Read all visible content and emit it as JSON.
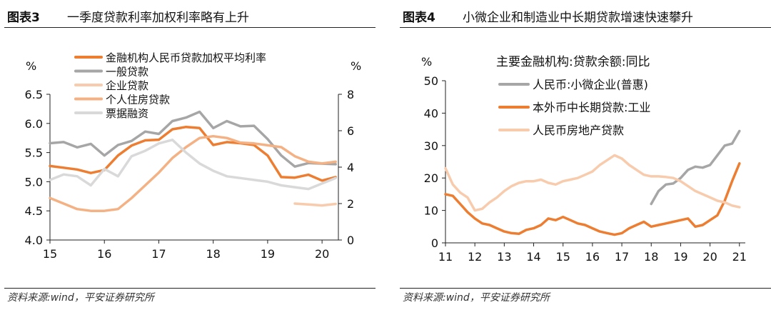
{
  "panels": [
    {
      "figure_label": "图表3",
      "figure_title": "一季度贷款利率加权利率略有上升",
      "source": "资料来源:wind，平安证券研究所"
    },
    {
      "figure_label": "图表4",
      "figure_title": "小微企业和制造业中长期贷款增速快速攀升",
      "source": "资料来源:wind，平安证券研究所"
    }
  ],
  "chart_data": [
    {
      "type": "line",
      "title": "",
      "y_left": {
        "unit": "%",
        "lim": [
          4.0,
          6.5
        ],
        "ticks": [
          "4.0",
          "4.5",
          "5.0",
          "5.5",
          "6.0",
          "6.5"
        ]
      },
      "y_right": {
        "unit": "%",
        "lim": [
          0,
          8
        ],
        "ticks": [
          "0",
          "2",
          "4",
          "6",
          "8"
        ]
      },
      "x": {
        "lim": [
          15,
          20.3
        ],
        "ticks": [
          "15",
          "16",
          "17",
          "18",
          "19",
          "20"
        ]
      },
      "legend_placement": "top-center",
      "series": [
        {
          "name": "金融机构人民币贷款加权平均利率",
          "axis": "left",
          "color": "#ED7D31",
          "width": 3.5,
          "points": [
            [
              15.0,
              5.27
            ],
            [
              15.25,
              5.24
            ],
            [
              15.5,
              5.21
            ],
            [
              15.75,
              5.15
            ],
            [
              16.0,
              5.2
            ],
            [
              16.25,
              5.45
            ],
            [
              16.5,
              5.62
            ],
            [
              16.75,
              5.71
            ],
            [
              17.0,
              5.72
            ],
            [
              17.25,
              5.9
            ],
            [
              17.5,
              5.94
            ],
            [
              17.75,
              5.92
            ],
            [
              18.0,
              5.63
            ],
            [
              18.25,
              5.68
            ],
            [
              18.5,
              5.66
            ],
            [
              18.75,
              5.63
            ],
            [
              19.0,
              5.45
            ],
            [
              19.25,
              5.08
            ],
            [
              19.5,
              5.07
            ],
            [
              19.75,
              5.12
            ],
            [
              20.0,
              5.02
            ],
            [
              20.25,
              5.08
            ]
          ]
        },
        {
          "name": "一般贷款",
          "axis": "left",
          "color": "#A6A6A6",
          "width": 3.5,
          "points": [
            [
              15.0,
              5.66
            ],
            [
              15.25,
              5.68
            ],
            [
              15.5,
              5.59
            ],
            [
              15.75,
              5.65
            ],
            [
              16.0,
              5.45
            ],
            [
              16.25,
              5.63
            ],
            [
              16.5,
              5.7
            ],
            [
              16.75,
              5.86
            ],
            [
              17.0,
              5.82
            ],
            [
              17.25,
              6.04
            ],
            [
              17.5,
              6.1
            ],
            [
              17.75,
              6.2
            ],
            [
              18.0,
              5.92
            ],
            [
              18.25,
              6.04
            ],
            [
              18.5,
              5.95
            ],
            [
              18.75,
              5.96
            ],
            [
              19.0,
              5.73
            ],
            [
              19.25,
              5.45
            ],
            [
              19.5,
              5.26
            ],
            [
              19.75,
              5.32
            ],
            [
              20.0,
              5.31
            ],
            [
              20.25,
              5.3
            ]
          ]
        },
        {
          "name": "企业贷款",
          "axis": "right",
          "color": "#F8CBAD",
          "width": 3.5,
          "points": [
            [
              19.5,
              2.0
            ],
            [
              19.75,
              1.95
            ],
            [
              20.0,
              1.9
            ],
            [
              20.25,
              1.98
            ]
          ]
        },
        {
          "name": "个人住房贷款",
          "axis": "right",
          "color": "#F4B183",
          "width": 3.5,
          "points": [
            [
              15.0,
              2.3
            ],
            [
              15.25,
              2.0
            ],
            [
              15.5,
              1.7
            ],
            [
              15.75,
              1.6
            ],
            [
              16.0,
              1.6
            ],
            [
              16.25,
              1.7
            ],
            [
              16.5,
              2.3
            ],
            [
              16.75,
              3.0
            ],
            [
              17.0,
              3.7
            ],
            [
              17.25,
              4.5
            ],
            [
              17.5,
              5.1
            ],
            [
              17.75,
              5.6
            ],
            [
              18.0,
              5.7
            ],
            [
              18.25,
              5.6
            ],
            [
              18.5,
              5.35
            ],
            [
              18.75,
              5.3
            ],
            [
              19.0,
              5.2
            ],
            [
              19.25,
              5.1
            ],
            [
              19.5,
              4.6
            ],
            [
              19.75,
              4.3
            ],
            [
              20.0,
              4.2
            ],
            [
              20.25,
              4.3
            ]
          ]
        },
        {
          "name": "票据融资",
          "axis": "right",
          "color": "#D9D9D9",
          "width": 3.5,
          "points": [
            [
              15.0,
              3.3
            ],
            [
              15.25,
              3.6
            ],
            [
              15.5,
              3.5
            ],
            [
              15.75,
              3.0
            ],
            [
              16.0,
              3.9
            ],
            [
              16.25,
              3.5
            ],
            [
              16.5,
              4.6
            ],
            [
              16.75,
              4.9
            ],
            [
              17.0,
              5.3
            ],
            [
              17.25,
              5.5
            ],
            [
              17.5,
              4.8
            ],
            [
              17.75,
              4.2
            ],
            [
              18.0,
              3.8
            ],
            [
              18.25,
              3.5
            ],
            [
              18.5,
              3.4
            ],
            [
              18.75,
              3.3
            ],
            [
              19.0,
              3.2
            ],
            [
              19.25,
              3.0
            ],
            [
              19.5,
              2.9
            ],
            [
              19.75,
              2.8
            ],
            [
              20.0,
              3.1
            ],
            [
              20.25,
              3.4
            ]
          ]
        }
      ]
    },
    {
      "type": "line",
      "title": "主要金融机构:贷款余额:同比",
      "y_left": {
        "unit": "%",
        "lim": [
          0,
          50
        ],
        "ticks": [
          "0",
          "10",
          "20",
          "30",
          "40",
          "50"
        ]
      },
      "x": {
        "lim": [
          11,
          21.2
        ],
        "ticks": [
          "11",
          "12",
          "13",
          "14",
          "15",
          "16",
          "17",
          "18",
          "19",
          "20",
          "21"
        ]
      },
      "legend_placement": "top-left",
      "series": [
        {
          "name": "人民币:小微企业(普惠)",
          "axis": "left",
          "color": "#A6A6A6",
          "width": 3.5,
          "points": [
            [
              18.0,
              12.0
            ],
            [
              18.25,
              16.0
            ],
            [
              18.5,
              18.0
            ],
            [
              18.75,
              18.3
            ],
            [
              19.0,
              20.0
            ],
            [
              19.25,
              22.5
            ],
            [
              19.5,
              23.5
            ],
            [
              19.75,
              23.2
            ],
            [
              20.0,
              24.0
            ],
            [
              20.25,
              27.0
            ],
            [
              20.5,
              30.0
            ],
            [
              20.75,
              30.6
            ],
            [
              21.0,
              34.5
            ]
          ]
        },
        {
          "name": "本外币中长期贷款:工业",
          "axis": "left",
          "color": "#ED7D31",
          "width": 3.5,
          "points": [
            [
              11.0,
              15.0
            ],
            [
              11.25,
              14.5
            ],
            [
              11.5,
              12.0
            ],
            [
              11.75,
              9.5
            ],
            [
              12.0,
              7.5
            ],
            [
              12.25,
              6.0
            ],
            [
              12.5,
              5.5
            ],
            [
              12.75,
              4.5
            ],
            [
              13.0,
              3.5
            ],
            [
              13.25,
              3.0
            ],
            [
              13.5,
              2.8
            ],
            [
              13.75,
              4.0
            ],
            [
              14.0,
              4.5
            ],
            [
              14.25,
              5.5
            ],
            [
              14.5,
              7.5
            ],
            [
              14.75,
              7.0
            ],
            [
              15.0,
              8.0
            ],
            [
              15.25,
              7.0
            ],
            [
              15.5,
              6.0
            ],
            [
              15.75,
              5.5
            ],
            [
              16.0,
              4.5
            ],
            [
              16.25,
              3.5
            ],
            [
              16.5,
              3.0
            ],
            [
              16.75,
              2.5
            ],
            [
              17.0,
              3.0
            ],
            [
              17.25,
              4.5
            ],
            [
              17.5,
              5.5
            ],
            [
              17.75,
              6.5
            ],
            [
              18.0,
              5.0
            ],
            [
              18.25,
              5.5
            ],
            [
              18.5,
              6.0
            ],
            [
              18.75,
              6.5
            ],
            [
              19.0,
              7.0
            ],
            [
              19.25,
              7.5
            ],
            [
              19.5,
              5.0
            ],
            [
              19.75,
              5.5
            ],
            [
              20.0,
              7.0
            ],
            [
              20.25,
              8.5
            ],
            [
              20.5,
              13.0
            ],
            [
              20.75,
              19.0
            ],
            [
              21.0,
              24.5
            ]
          ]
        },
        {
          "name": "人民币房地产贷款",
          "axis": "left",
          "color": "#F8CBAD",
          "width": 3.5,
          "points": [
            [
              11.0,
              23.0
            ],
            [
              11.25,
              18.0
            ],
            [
              11.5,
              15.5
            ],
            [
              11.75,
              14.0
            ],
            [
              12.0,
              10.0
            ],
            [
              12.25,
              10.5
            ],
            [
              12.5,
              12.5
            ],
            [
              12.75,
              14.0
            ],
            [
              13.0,
              16.0
            ],
            [
              13.25,
              17.5
            ],
            [
              13.5,
              18.5
            ],
            [
              13.75,
              19.0
            ],
            [
              14.0,
              19.0
            ],
            [
              14.25,
              19.5
            ],
            [
              14.5,
              18.5
            ],
            [
              14.75,
              18.0
            ],
            [
              15.0,
              19.0
            ],
            [
              15.25,
              19.5
            ],
            [
              15.5,
              20.0
            ],
            [
              15.75,
              21.0
            ],
            [
              16.0,
              22.0
            ],
            [
              16.25,
              24.0
            ],
            [
              16.5,
              25.5
            ],
            [
              16.75,
              27.0
            ],
            [
              17.0,
              26.0
            ],
            [
              17.25,
              24.0
            ],
            [
              17.5,
              22.5
            ],
            [
              17.75,
              21.0
            ],
            [
              18.0,
              20.5
            ],
            [
              18.25,
              20.5
            ],
            [
              18.5,
              20.3
            ],
            [
              18.75,
              20.0
            ],
            [
              19.0,
              19.0
            ],
            [
              19.25,
              17.5
            ],
            [
              19.5,
              16.0
            ],
            [
              19.75,
              15.0
            ],
            [
              20.0,
              14.0
            ],
            [
              20.25,
              13.0
            ],
            [
              20.5,
              12.5
            ],
            [
              20.75,
              11.5
            ],
            [
              21.0,
              11.0
            ]
          ]
        }
      ]
    }
  ]
}
